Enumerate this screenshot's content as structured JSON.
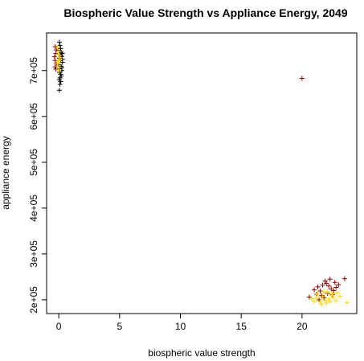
{
  "chart_data": {
    "type": "scatter",
    "title": "Biospheric Value Strength vs Appliance Energy, 2049",
    "xlabel": "biospheric value strength",
    "ylabel": "appliance energy",
    "xlim": [
      -1.0,
      24.5
    ],
    "ylim": [
      170000,
      782000
    ],
    "x_ticks": [
      0,
      5,
      10,
      15,
      20
    ],
    "x_tick_labels": [
      "0",
      "5",
      "10",
      "15",
      "20"
    ],
    "y_ticks": [
      200000,
      300000,
      400000,
      500000,
      600000,
      700000
    ],
    "y_tick_labels": [
      "2e+05",
      "3e+05",
      "4e+05",
      "5e+05",
      "6e+05",
      "7e+05"
    ],
    "grid": false,
    "marker": "+",
    "colors": {
      "black": "#000000",
      "darkred": "#8B0000",
      "gold": "#FFD700"
    },
    "series": [
      {
        "color": "#000000",
        "points": [
          [
            0.05,
            762000
          ],
          [
            0.1,
            755000
          ],
          [
            0.15,
            748000
          ],
          [
            0.0,
            744000
          ],
          [
            0.2,
            740000
          ],
          [
            0.1,
            735000
          ],
          [
            0.25,
            731000
          ],
          [
            0.05,
            727000
          ],
          [
            0.15,
            722000
          ],
          [
            0.3,
            718000
          ],
          [
            0.0,
            713000
          ],
          [
            0.2,
            709000
          ],
          [
            0.1,
            704000
          ],
          [
            0.25,
            700000
          ],
          [
            0.05,
            696000
          ],
          [
            0.15,
            692000
          ],
          [
            0.2,
            688000
          ],
          [
            0.1,
            684000
          ],
          [
            0.05,
            680000
          ],
          [
            0.15,
            676000
          ],
          [
            0.1,
            670000
          ],
          [
            0.05,
            657000
          ],
          [
            0.3,
            725000
          ],
          [
            0.25,
            706000
          ],
          [
            0.3,
            737000
          ]
        ]
      },
      {
        "color": "#8B0000",
        "points": [
          [
            -0.3,
            752000
          ],
          [
            -0.2,
            745000
          ],
          [
            -0.25,
            737000
          ],
          [
            -0.35,
            730000
          ],
          [
            -0.3,
            722000
          ],
          [
            -0.2,
            715000
          ],
          [
            -0.3,
            708000
          ],
          [
            -0.25,
            703000
          ],
          [
            20.0,
            683000
          ],
          [
            21.0,
            222000
          ],
          [
            21.3,
            228000
          ],
          [
            21.5,
            219000
          ],
          [
            21.7,
            232000
          ],
          [
            21.9,
            241000
          ],
          [
            22.0,
            236000
          ],
          [
            22.2,
            230000
          ],
          [
            22.4,
            224000
          ],
          [
            22.6,
            220000
          ],
          [
            22.8,
            227000
          ],
          [
            21.2,
            212000
          ],
          [
            21.6,
            209000
          ],
          [
            22.1,
            214000
          ],
          [
            22.5,
            211000
          ],
          [
            23.0,
            233000
          ],
          [
            23.5,
            246000
          ],
          [
            21.8,
            205000
          ],
          [
            22.3,
            245000
          ],
          [
            20.6,
            206000
          ],
          [
            21.4,
            200000
          ],
          [
            22.7,
            238000
          ]
        ]
      },
      {
        "color": "#FFD700",
        "points": [
          [
            -0.1,
            750000
          ],
          [
            0.0,
            742000
          ],
          [
            -0.05,
            735000
          ],
          [
            0.1,
            728000
          ],
          [
            0.0,
            721000
          ],
          [
            -0.1,
            714000
          ],
          [
            0.05,
            707000
          ],
          [
            0.0,
            700000
          ],
          [
            0.1,
            725000
          ],
          [
            -0.05,
            718000
          ],
          [
            21.0,
            197000
          ],
          [
            21.2,
            203000
          ],
          [
            21.5,
            195000
          ],
          [
            21.7,
            207000
          ],
          [
            21.9,
            199000
          ],
          [
            22.0,
            193000
          ],
          [
            22.2,
            202000
          ],
          [
            22.4,
            210000
          ],
          [
            22.6,
            205000
          ],
          [
            22.8,
            198000
          ],
          [
            21.3,
            212000
          ],
          [
            21.8,
            216000
          ],
          [
            22.1,
            218000
          ],
          [
            22.5,
            213000
          ],
          [
            20.8,
            202000
          ],
          [
            23.1,
            208000
          ],
          [
            23.7,
            194000
          ],
          [
            22.9,
            215000
          ],
          [
            21.6,
            190000
          ],
          [
            22.3,
            196000
          ]
        ]
      }
    ]
  }
}
